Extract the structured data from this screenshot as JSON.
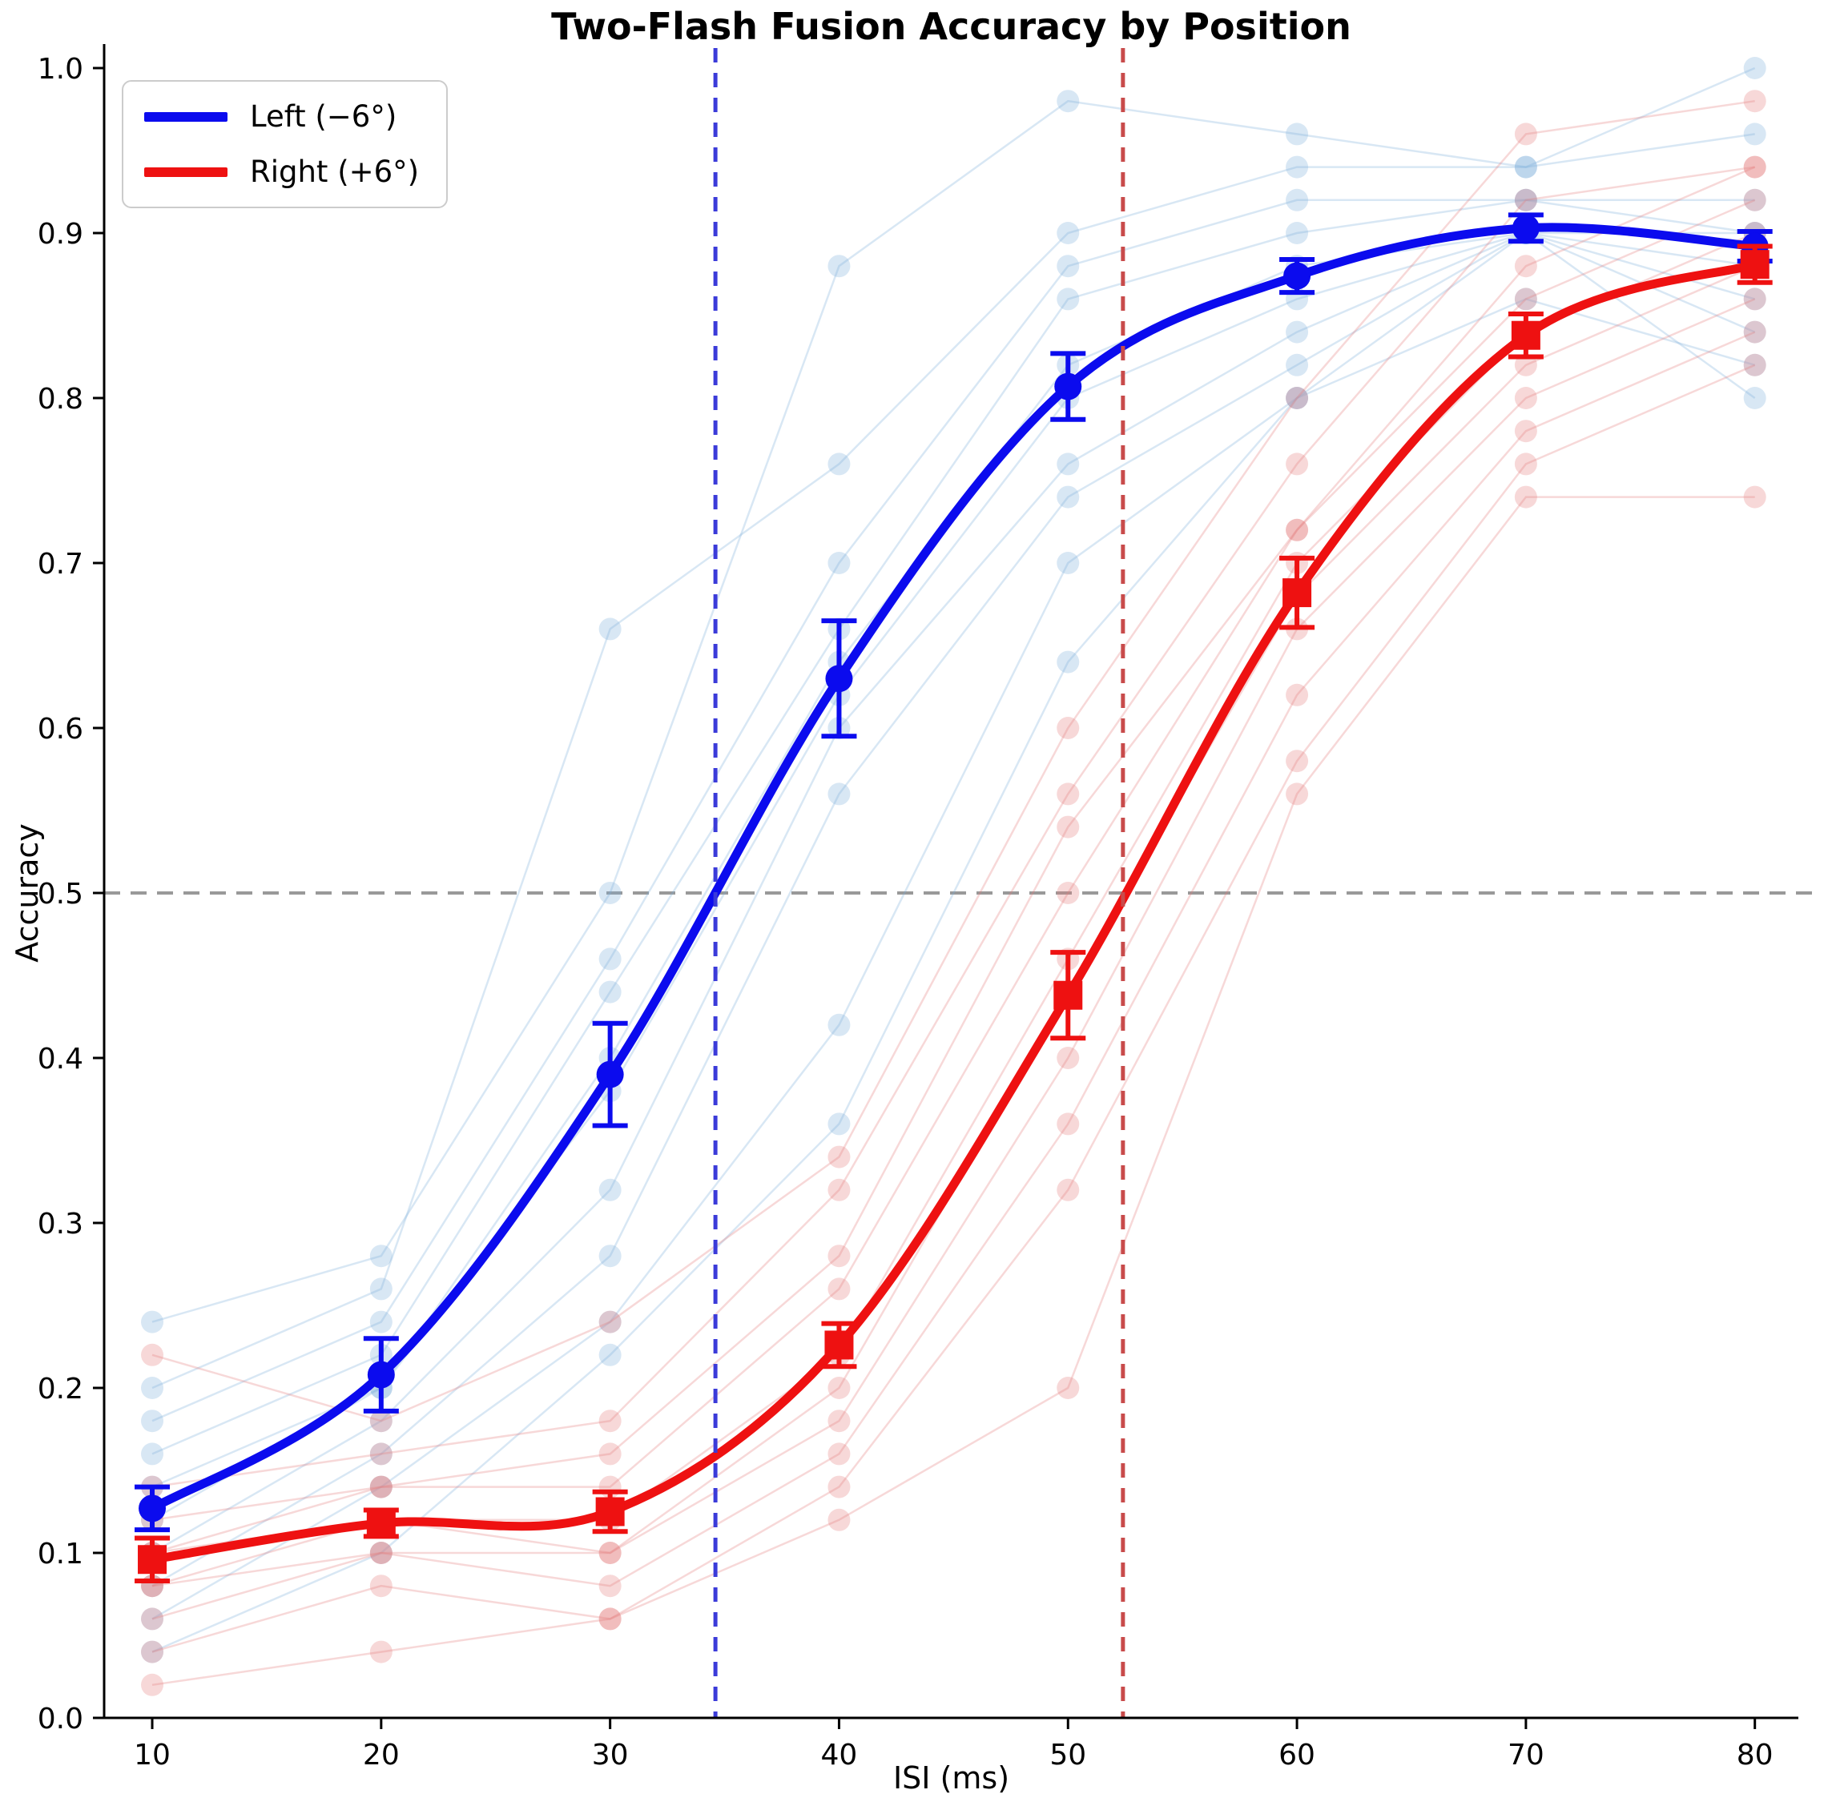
{
  "chart_data": {
    "type": "line",
    "title": "Two-Flash Fusion Accuracy by Position",
    "xlabel": "ISI (ms)",
    "ylabel": "Accuracy",
    "x": [
      10,
      20,
      30,
      40,
      50,
      60,
      70,
      80
    ],
    "x_tick_labels": [
      "10",
      "20",
      "30",
      "40",
      "50",
      "60",
      "70",
      "80"
    ],
    "y_tick_labels": [
      "0.0",
      "0.1",
      "0.2",
      "0.3",
      "0.4",
      "0.5",
      "0.6",
      "0.7",
      "0.8",
      "0.9",
      "1.0"
    ],
    "xlim": [
      7.9,
      81.9
    ],
    "ylim": [
      0,
      1
    ],
    "grid": false,
    "legend_position": "upper-left",
    "series": [
      {
        "name": "Left (−6°)",
        "marker": "circle",
        "color": "#0b0bee",
        "values": [
          0.127,
          0.208,
          0.39,
          0.63,
          0.807,
          0.874,
          0.903,
          0.892
        ],
        "errors": [
          0.013,
          0.022,
          0.031,
          0.035,
          0.02,
          0.01,
          0.008,
          0.009
        ]
      },
      {
        "name": "Right (+6°)",
        "marker": "square",
        "color": "#ee1111",
        "values": [
          0.096,
          0.118,
          0.125,
          0.226,
          0.438,
          0.682,
          0.838,
          0.881
        ],
        "errors": [
          0.013,
          0.008,
          0.012,
          0.013,
          0.026,
          0.021,
          0.013,
          0.011
        ]
      }
    ],
    "reference_lines": {
      "horizontal": {
        "y": 0.5,
        "color": "#999999",
        "style": "dashed",
        "width": 4
      },
      "vertical": [
        {
          "x": 34.6,
          "color": "#3b3bd9",
          "style": "dashed",
          "width": 5,
          "series": "Left (−6°)"
        },
        {
          "x": 52.4,
          "color": "#c84b4b",
          "style": "dashed",
          "width": 5,
          "series": "Right (+6°)"
        }
      ]
    },
    "individual_subject_traces_estimated": {
      "left_color": "rgba(125,175,220,0.30)",
      "right_color": "rgba(230,125,125,0.30)",
      "left": [
        [
          0.24,
          0.28,
          0.5,
          0.88,
          0.98,
          0.96,
          0.94,
          1.0
        ],
        [
          0.2,
          0.26,
          0.66,
          0.76,
          0.9,
          0.94,
          0.94,
          0.96
        ],
        [
          0.18,
          0.24,
          0.46,
          0.7,
          0.88,
          0.92,
          0.92,
          0.92
        ],
        [
          0.16,
          0.22,
          0.44,
          0.66,
          0.86,
          0.9,
          0.92,
          0.9
        ],
        [
          0.14,
          0.2,
          0.4,
          0.64,
          0.82,
          0.88,
          0.9,
          0.9
        ],
        [
          0.12,
          0.2,
          0.38,
          0.62,
          0.8,
          0.86,
          0.9,
          0.88
        ],
        [
          0.1,
          0.18,
          0.32,
          0.6,
          0.76,
          0.84,
          0.9,
          0.86
        ],
        [
          0.08,
          0.16,
          0.28,
          0.56,
          0.74,
          0.82,
          0.9,
          0.84
        ],
        [
          0.06,
          0.14,
          0.24,
          0.42,
          0.7,
          0.8,
          0.86,
          0.82
        ],
        [
          0.04,
          0.1,
          0.22,
          0.36,
          0.64,
          0.8,
          0.9,
          0.8
        ]
      ],
      "right": [
        [
          0.22,
          0.18,
          0.24,
          0.34,
          0.6,
          0.8,
          0.96,
          0.98
        ],
        [
          0.14,
          0.16,
          0.18,
          0.32,
          0.56,
          0.76,
          0.92,
          0.94
        ],
        [
          0.12,
          0.14,
          0.16,
          0.28,
          0.54,
          0.72,
          0.88,
          0.94
        ],
        [
          0.1,
          0.14,
          0.14,
          0.26,
          0.5,
          0.72,
          0.86,
          0.92
        ],
        [
          0.1,
          0.12,
          0.12,
          0.22,
          0.46,
          0.7,
          0.84,
          0.9
        ],
        [
          0.08,
          0.12,
          0.1,
          0.2,
          0.44,
          0.68,
          0.82,
          0.88
        ],
        [
          0.08,
          0.1,
          0.1,
          0.18,
          0.4,
          0.66,
          0.8,
          0.86
        ],
        [
          0.06,
          0.1,
          0.08,
          0.16,
          0.36,
          0.62,
          0.78,
          0.84
        ],
        [
          0.04,
          0.08,
          0.06,
          0.14,
          0.32,
          0.58,
          0.76,
          0.82
        ],
        [
          0.02,
          0.04,
          0.06,
          0.12,
          0.2,
          0.56,
          0.74,
          0.74
        ]
      ]
    },
    "axis_color": "#000000"
  }
}
